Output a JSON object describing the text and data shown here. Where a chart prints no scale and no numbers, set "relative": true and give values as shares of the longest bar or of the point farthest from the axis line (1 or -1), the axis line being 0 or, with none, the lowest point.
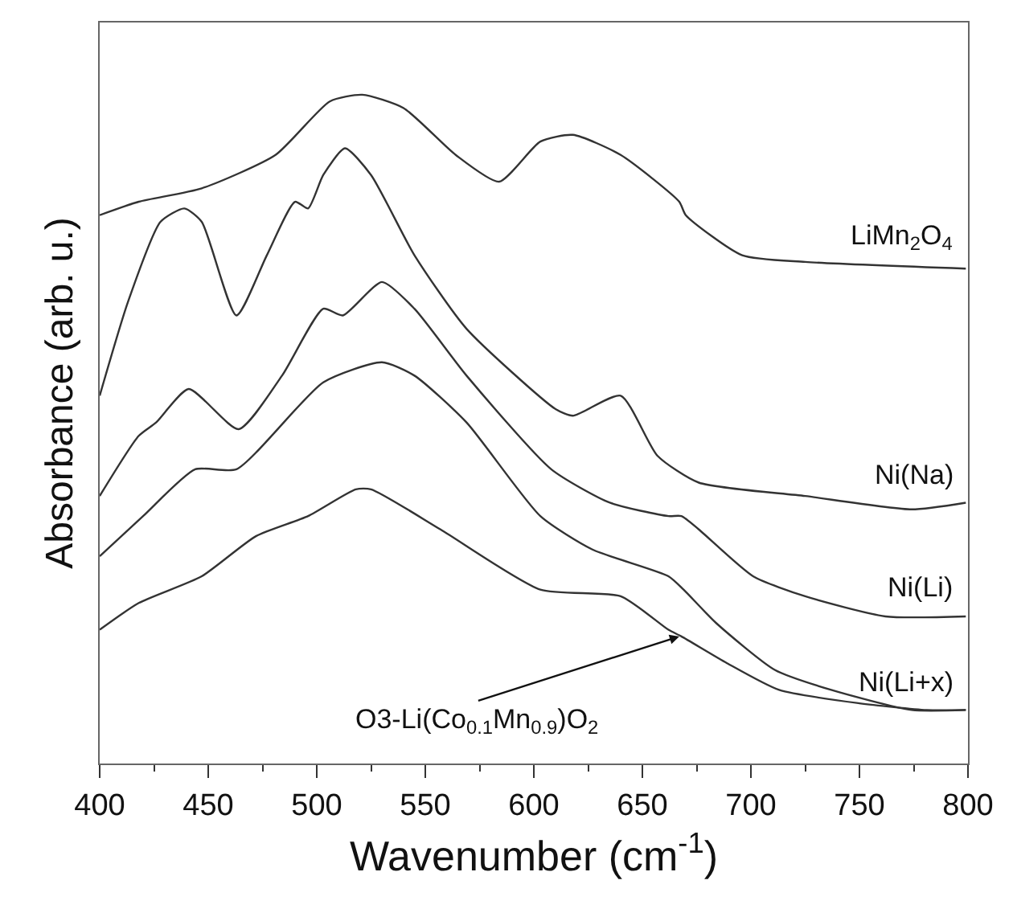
{
  "chart_data": {
    "type": "line",
    "relative": true,
    "xlabel": "Wavenumber (cm$^{-1}$)",
    "ylabel": "Absorbance (arb. u.)",
    "xlim": [
      400,
      800
    ],
    "xticks": [
      400,
      450,
      500,
      550,
      600,
      650,
      700,
      750,
      800
    ],
    "grid": false,
    "legend": false,
    "marker": "none",
    "line_style": "solid",
    "tick_labels": "x",
    "series": [
      {
        "name": "LiMn$_{2}$O$_{4}$",
        "color": "#333333",
        "x": [
          400,
          418,
          447,
          481,
          506,
          521,
          540,
          564,
          584,
          603,
          618,
          640,
          667,
          670,
          696,
          725,
          799
        ],
        "values": [
          0.82,
          0.84,
          0.86,
          0.91,
          0.99,
          1.0,
          0.98,
          0.91,
          0.87,
          0.93,
          0.94,
          0.91,
          0.84,
          0.82,
          0.76,
          0.75,
          0.74
        ]
      },
      {
        "name": "Ni(Na)",
        "color": "#333333",
        "x": [
          400,
          413,
          428,
          439,
          447,
          463,
          477,
          490,
          496,
          503,
          513,
          525,
          545,
          569,
          610,
          618,
          640,
          657,
          676,
          725,
          774,
          799
        ],
        "values": [
          0.55,
          0.69,
          0.81,
          0.83,
          0.81,
          0.67,
          0.76,
          0.84,
          0.83,
          0.88,
          0.92,
          0.88,
          0.76,
          0.65,
          0.53,
          0.52,
          0.55,
          0.46,
          0.42,
          0.4,
          0.38,
          0.39
        ]
      },
      {
        "name": "Ni(Li)",
        "color": "#333333",
        "x": [
          400,
          418,
          426,
          441,
          464,
          484,
          503,
          512,
          530,
          545,
          569,
          608,
          635,
          662,
          668,
          676,
          701,
          725,
          762,
          799
        ],
        "values": [
          0.4,
          0.49,
          0.51,
          0.56,
          0.5,
          0.58,
          0.68,
          0.67,
          0.72,
          0.68,
          0.58,
          0.44,
          0.39,
          0.37,
          0.37,
          0.35,
          0.28,
          0.25,
          0.22,
          0.22
        ]
      },
      {
        "name": "Ni(Li+x)",
        "color": "#333333",
        "x": [
          400,
          420,
          444,
          463,
          503,
          530,
          545,
          569,
          603,
          627,
          662,
          669,
          684,
          711,
          737,
          774,
          799
        ],
        "values": [
          0.31,
          0.37,
          0.44,
          0.44,
          0.57,
          0.6,
          0.58,
          0.51,
          0.37,
          0.32,
          0.28,
          0.26,
          0.21,
          0.14,
          0.11,
          0.08,
          0.08
        ]
      },
      {
        "color": "#333333",
        "x": [
          400,
          418,
          447,
          472,
          496,
          518,
          525,
          557,
          603,
          640,
          662,
          668,
          689,
          713,
          750,
          781,
          799
        ],
        "values": [
          0.2,
          0.24,
          0.28,
          0.34,
          0.37,
          0.41,
          0.41,
          0.35,
          0.26,
          0.25,
          0.2,
          0.19,
          0.15,
          0.11,
          0.09,
          0.08,
          0.08
        ]
      }
    ],
    "annotations": [
      {
        "text": "O3-Li(Co$_{0.1}$Mn$_{0.9}$)O$_{2}$",
        "x": 667,
        "y": 0.19
      }
    ]
  }
}
